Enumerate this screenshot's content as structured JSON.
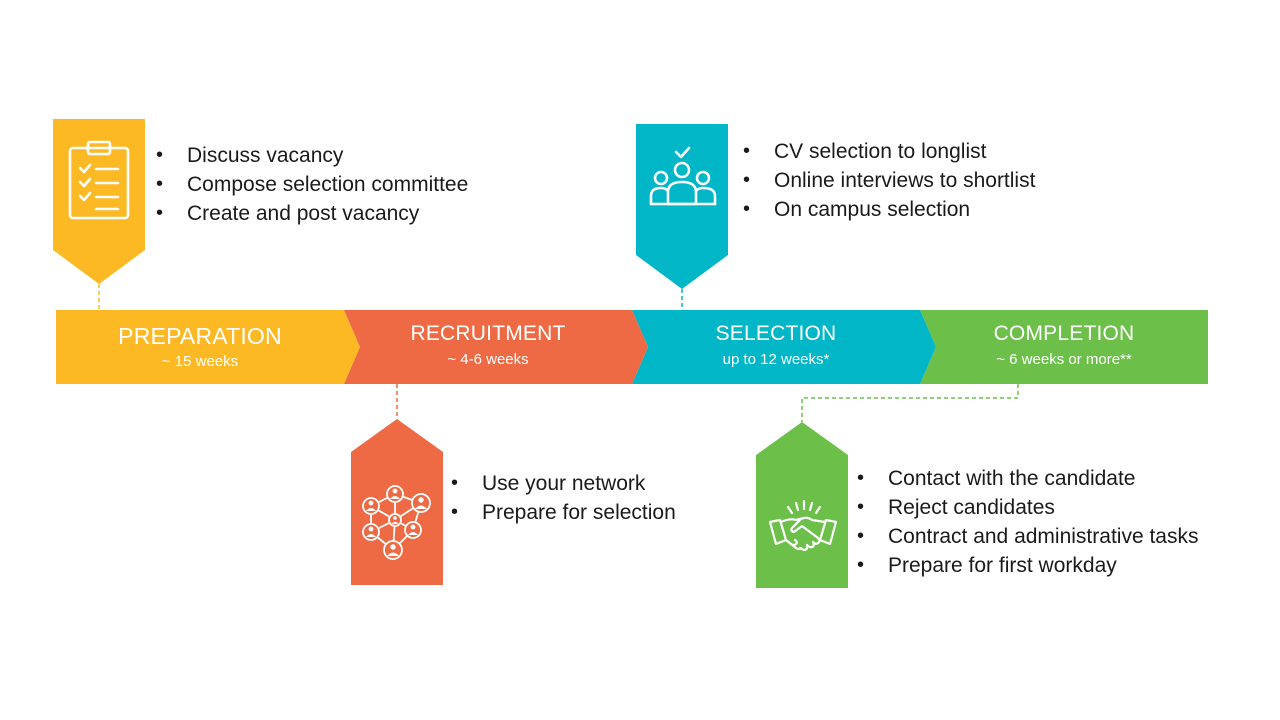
{
  "colors": {
    "preparation": "#FDB924",
    "recruitment": "#EE6A44",
    "selection": "#00B6C7",
    "completion": "#6CC04A"
  },
  "phases": [
    {
      "name": "PREPARATION",
      "duration": "~ 15 weeks"
    },
    {
      "name": "RECRUITMENT",
      "duration": "~ 4-6 weeks"
    },
    {
      "name": "SELECTION",
      "duration": "up to 12 weeks*"
    },
    {
      "name": "COMPLETION",
      "duration": "~ 6 weeks or more**"
    }
  ],
  "callouts": {
    "preparation": {
      "icon": "clipboard-checklist-icon",
      "items": [
        "Discuss vacancy",
        "Compose selection committee",
        "Create and post vacancy"
      ]
    },
    "recruitment": {
      "icon": "network-people-icon",
      "items": [
        "Use your network",
        "Prepare for selection"
      ]
    },
    "selection": {
      "icon": "group-check-icon",
      "items": [
        "CV selection to longlist",
        "Online interviews to shortlist",
        "On campus selection"
      ]
    },
    "completion": {
      "icon": "handshake-icon",
      "items": [
        "Contact with the candidate",
        "Reject candidates",
        "Contract and administrative tasks",
        "Prepare for first workday"
      ]
    }
  }
}
